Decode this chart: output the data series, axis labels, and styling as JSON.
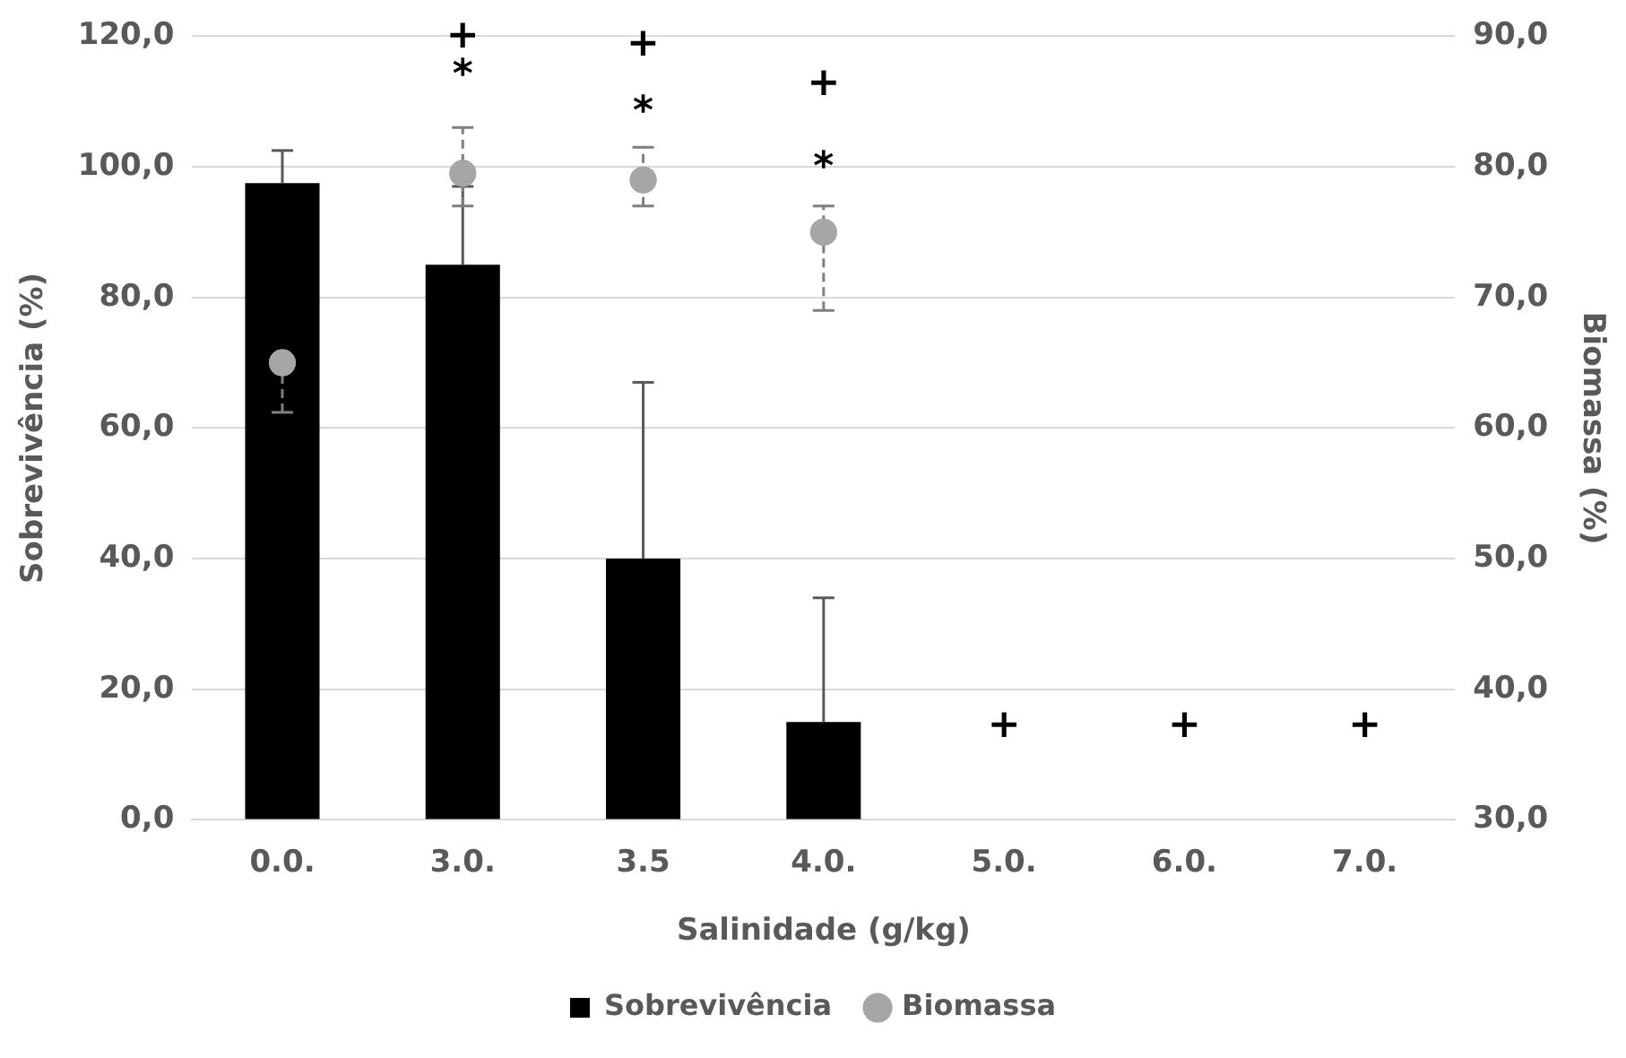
{
  "chart_data": {
    "type": "bar",
    "xlabel": "Salinidade (g/kg)",
    "ylabel": "Sobrevivência (%)",
    "y2label": "Biomassa (%)",
    "categories": [
      "0.0.",
      "3.0.",
      "3.5",
      "4.0.",
      "5.0.",
      "6.0.",
      "7.0."
    ],
    "series": [
      {
        "name": "Sobrevivência",
        "color": "#000000",
        "values": [
          97.5,
          85,
          40,
          15,
          0,
          0,
          0
        ],
        "errors": [
          [
            97.5,
            102.5
          ],
          [
            85,
            97
          ],
          [
            40,
            67
          ],
          [
            15,
            34
          ],
          null,
          null,
          null
        ]
      },
      {
        "name": "Biomassa",
        "type": "scatter",
        "axis": "y2",
        "color": "#a6a6a6",
        "x": [
          "0.0.",
          "3.0.",
          "3.5",
          "4.0."
        ],
        "values": [
          65,
          79.5,
          79,
          75
        ],
        "errors": [
          [
            61.2,
            65
          ],
          [
            77,
            83
          ],
          [
            77,
            81.5
          ],
          [
            69,
            77
          ]
        ]
      }
    ],
    "ylim": [
      0,
      120
    ],
    "yticks": [
      {
        "value": 0,
        "label": "0,0"
      },
      {
        "value": 20,
        "label": "20,0"
      },
      {
        "value": 40,
        "label": "40,0"
      },
      {
        "value": 60,
        "label": "60,0"
      },
      {
        "value": 80,
        "label": "80,0"
      },
      {
        "value": 100,
        "label": "100,0"
      },
      {
        "value": 120,
        "label": "120,0"
      }
    ],
    "y2lim": [
      30,
      90
    ],
    "y2ticks": [
      {
        "value": 30,
        "label": "30,0"
      },
      {
        "value": 40,
        "label": "40,0"
      },
      {
        "value": 50,
        "label": "50,0"
      },
      {
        "value": 60,
        "label": "60,0"
      },
      {
        "value": 70,
        "label": "70,0"
      },
      {
        "value": 80,
        "label": "80,0"
      },
      {
        "value": 90,
        "label": "90,0"
      }
    ],
    "annotations": [
      "+",
      "*",
      "+",
      "*",
      "+",
      "*",
      "+",
      "+",
      "+"
    ],
    "grid": "y",
    "legend": "bottom",
    "marker": "circle"
  }
}
